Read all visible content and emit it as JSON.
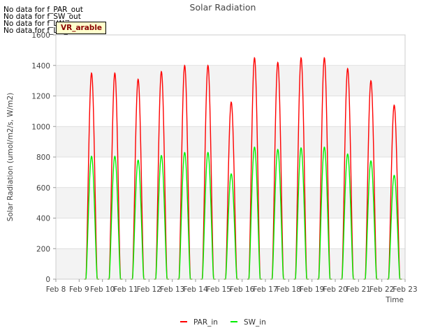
{
  "no_data_messages": [
    "No data for f_PAR_out",
    "No data for f_SW_out",
    "No data for f_LW_in",
    "No data for f_LW_out"
  ],
  "badge_label": "VR_arable",
  "colors": {
    "PAR_in": "#ff0000",
    "SW_in": "#00ee00",
    "band": "#e8e8e8",
    "grid": "#d8d8d8"
  },
  "chart_data": {
    "type": "line",
    "title": "Solar Radiation",
    "xlabel": "Time",
    "ylabel": "Solar Radiation (umol/m2/s, W/m2)",
    "ylim": [
      0,
      1600
    ],
    "yticks": [
      0,
      200,
      400,
      600,
      800,
      1000,
      1200,
      1400,
      1600
    ],
    "xlim_days": [
      8,
      23
    ],
    "xticks": [
      "Feb 8",
      "Feb 9",
      "Feb 10",
      "Feb 11",
      "Feb 12",
      "Feb 13",
      "Feb 14",
      "Feb 15",
      "Feb 16",
      "Feb 17",
      "Feb 18",
      "Feb 19",
      "Feb 20",
      "Feb 21",
      "Feb 22",
      "Feb 23"
    ],
    "grid": true,
    "legend_position": "bottom-center",
    "series": [
      {
        "name": "PAR_in",
        "daily_peaks": [
          {
            "date": "Feb 9",
            "peak": 1350
          },
          {
            "date": "Feb 10",
            "peak": 1350
          },
          {
            "date": "Feb 11",
            "peak": 1310
          },
          {
            "date": "Feb 12",
            "peak": 1360
          },
          {
            "date": "Feb 13",
            "peak": 1400
          },
          {
            "date": "Feb 14",
            "peak": 1400
          },
          {
            "date": "Feb 15",
            "peak": 1160
          },
          {
            "date": "Feb 16",
            "peak": 1450
          },
          {
            "date": "Feb 17",
            "peak": 1420
          },
          {
            "date": "Feb 18",
            "peak": 1450
          },
          {
            "date": "Feb 19",
            "peak": 1450
          },
          {
            "date": "Feb 20",
            "peak": 1380
          },
          {
            "date": "Feb 21",
            "peak": 1300
          },
          {
            "date": "Feb 22",
            "peak": 1140
          }
        ]
      },
      {
        "name": "SW_in",
        "daily_peaks": [
          {
            "date": "Feb 9",
            "peak": 805
          },
          {
            "date": "Feb 10",
            "peak": 805
          },
          {
            "date": "Feb 11",
            "peak": 780
          },
          {
            "date": "Feb 12",
            "peak": 810
          },
          {
            "date": "Feb 13",
            "peak": 830
          },
          {
            "date": "Feb 14",
            "peak": 830
          },
          {
            "date": "Feb 15",
            "peak": 690
          },
          {
            "date": "Feb 16",
            "peak": 865
          },
          {
            "date": "Feb 17",
            "peak": 850
          },
          {
            "date": "Feb 18",
            "peak": 860
          },
          {
            "date": "Feb 19",
            "peak": 865
          },
          {
            "date": "Feb 20",
            "peak": 820
          },
          {
            "date": "Feb 21",
            "peak": 775
          },
          {
            "date": "Feb 22",
            "peak": 680
          }
        ]
      }
    ]
  }
}
